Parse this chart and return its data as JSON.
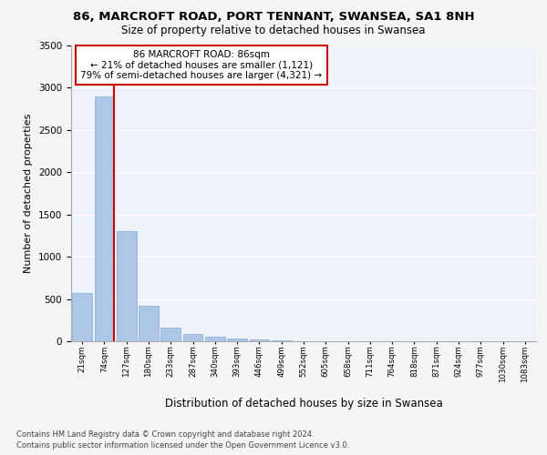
{
  "title1": "86, MARCROFT ROAD, PORT TENNANT, SWANSEA, SA1 8NH",
  "title2": "Size of property relative to detached houses in Swansea",
  "xlabel": "Distribution of detached houses by size in Swansea",
  "ylabel": "Number of detached properties",
  "categories": [
    "21sqm",
    "74sqm",
    "127sqm",
    "180sqm",
    "233sqm",
    "287sqm",
    "340sqm",
    "393sqm",
    "446sqm",
    "499sqm",
    "552sqm",
    "605sqm",
    "658sqm",
    "711sqm",
    "764sqm",
    "818sqm",
    "871sqm",
    "924sqm",
    "977sqm",
    "1030sqm",
    "1083sqm"
  ],
  "values": [
    570,
    2900,
    1300,
    415,
    165,
    85,
    55,
    35,
    20,
    10,
    0,
    0,
    0,
    0,
    0,
    0,
    0,
    0,
    0,
    0,
    0
  ],
  "bar_color": "#aec6e8",
  "bar_edge_color": "#7fafd4",
  "highlight_color": "#cc0000",
  "highlight_bar_index": 1,
  "annotation_text": "86 MARCROFT ROAD: 86sqm\n← 21% of detached houses are smaller (1,121)\n79% of semi-detached houses are larger (4,321) →",
  "annotation_box_color": "#ffffff",
  "annotation_box_edge_color": "#cc0000",
  "ylim": [
    0,
    3500
  ],
  "yticks": [
    0,
    500,
    1000,
    1500,
    2000,
    2500,
    3000,
    3500
  ],
  "background_color": "#eef2f9",
  "grid_color": "#ffffff",
  "footer_line1": "Contains HM Land Registry data © Crown copyright and database right 2024.",
  "footer_line2": "Contains public sector information licensed under the Open Government Licence v3.0."
}
